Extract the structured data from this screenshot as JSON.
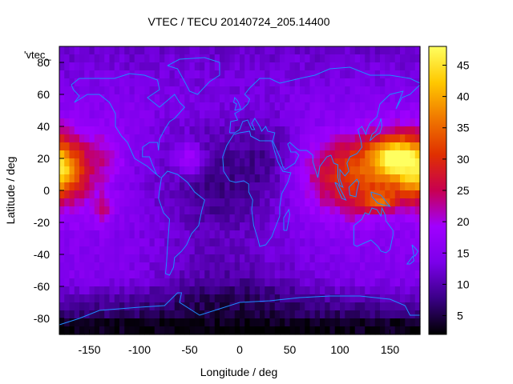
{
  "chart_data": {
    "type": "heatmap",
    "title": "VTEC / TECU 20140724_205.14400",
    "xlabel": "Longitude / deg",
    "ylabel": "Latitude / deg",
    "key_label": "'vtec_",
    "xlim": [
      -180,
      180
    ],
    "ylim": [
      -90,
      90
    ],
    "x_ticks": [
      -150,
      -100,
      -50,
      0,
      50,
      100,
      150
    ],
    "y_ticks": [
      -80,
      -60,
      -40,
      -20,
      0,
      20,
      40,
      60,
      80
    ],
    "colorbar": {
      "range": [
        2,
        48
      ],
      "ticks": [
        5,
        10,
        15,
        20,
        25,
        30,
        35,
        40,
        45
      ],
      "palette": [
        "#000000",
        "#3a0086",
        "#7b00ea",
        "#a000ff",
        "#c80050",
        "#e03000",
        "#f07800",
        "#ffc800",
        "#ffff60"
      ]
    },
    "coastline_color": "#1e8cff",
    "grid": false,
    "grid_step_deg": 5,
    "enhancements": [
      {
        "lon": -180,
        "lat": 12,
        "sx": 24,
        "sy": 16,
        "amp": 17
      },
      {
        "lon": -178,
        "lat": 10,
        "sx": 10,
        "sy": 6,
        "amp": 6
      },
      {
        "lon": 150,
        "lat": 18,
        "sx": 30,
        "sy": 14,
        "amp": 16
      },
      {
        "lon": 155,
        "lat": 22,
        "sx": 14,
        "sy": 6,
        "amp": 12
      },
      {
        "lon": 100,
        "lat": 8,
        "sx": 30,
        "sy": 16,
        "amp": 12
      },
      {
        "lon": 140,
        "lat": -7,
        "sx": 10,
        "sy": 4,
        "amp": 12
      },
      {
        "lon": -50,
        "lat": 20,
        "sx": 10,
        "sy": 7,
        "amp": 9
      },
      {
        "lon": -130,
        "lat": 22,
        "sx": 12,
        "sy": 12,
        "amp": 5
      },
      {
        "lon": -135,
        "lat": -12,
        "sx": 7,
        "sy": 7,
        "amp": 7
      },
      {
        "lon": 120,
        "lat": -10,
        "sx": 12,
        "sy": 7,
        "amp": 5
      }
    ],
    "depletions": [
      {
        "lon": -20,
        "lat": 5,
        "sx": 45,
        "sy": 30,
        "amp": 7
      },
      {
        "lon": -10,
        "lat": -60,
        "sx": 60,
        "sy": 15,
        "amp": 5
      },
      {
        "lon": 30,
        "lat": 25,
        "sx": 20,
        "sy": 20,
        "amp": 3
      }
    ],
    "base_level": 15,
    "polar_south_level": 2
  }
}
